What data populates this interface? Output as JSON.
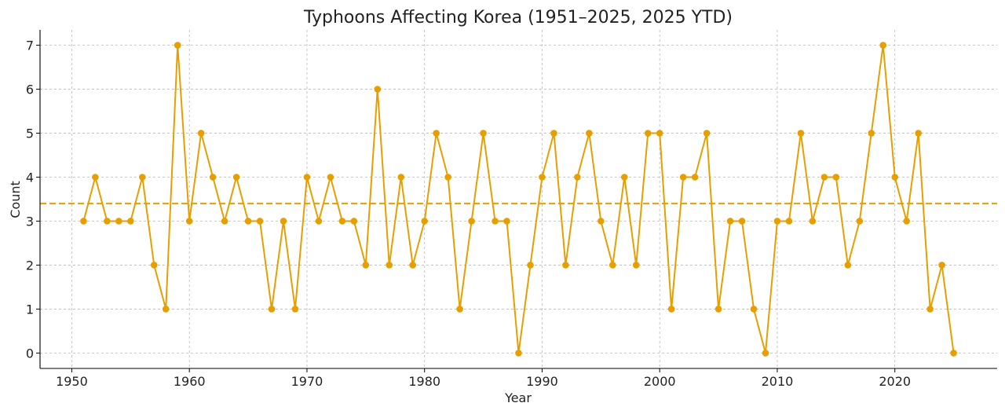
{
  "chart_data": {
    "type": "line",
    "title": "Typhoons Affecting Korea (1951–2025, 2025 YTD)",
    "xlabel": "Year",
    "ylabel": "Count",
    "xlim": [
      1947.3,
      2028.7
    ],
    "ylim": [
      -0.35,
      7.35
    ],
    "x_ticks": [
      1950,
      1960,
      1970,
      1980,
      1990,
      2000,
      2010,
      2020
    ],
    "y_ticks": [
      0,
      1,
      2,
      3,
      4,
      5,
      6,
      7
    ],
    "grid": true,
    "color": "#E69F00",
    "mean": 3.4,
    "series": [
      {
        "x": [
          1951,
          1952,
          1953,
          1954,
          1955,
          1956,
          1957,
          1958,
          1959,
          1960,
          1961,
          1962,
          1963,
          1964,
          1965,
          1966,
          1967,
          1968,
          1969,
          1970,
          1971,
          1972,
          1973,
          1974,
          1975,
          1976,
          1977,
          1978,
          1979,
          1980,
          1981,
          1982,
          1983,
          1984,
          1985,
          1986,
          1987,
          1988,
          1989,
          1990,
          1991,
          1992,
          1993,
          1994,
          1995,
          1996,
          1997,
          1998,
          1999,
          2000,
          2001,
          2002,
          2003,
          2004,
          2005,
          2006,
          2007,
          2008,
          2009,
          2010,
          2011,
          2012,
          2013,
          2014,
          2015,
          2016,
          2017,
          2018,
          2019,
          2020,
          2021,
          2022,
          2023,
          2024,
          2025
        ],
        "values": [
          3,
          4,
          3,
          3,
          3,
          4,
          2,
          1,
          7,
          3,
          5,
          4,
          3,
          4,
          3,
          3,
          1,
          3,
          1,
          4,
          3,
          4,
          3,
          3,
          2,
          6,
          2,
          4,
          2,
          3,
          5,
          4,
          1,
          3,
          5,
          3,
          3,
          0,
          2,
          4,
          5,
          2,
          4,
          5,
          3,
          2,
          4,
          2,
          5,
          5,
          1,
          4,
          4,
          5,
          1,
          3,
          3,
          1,
          0,
          3,
          3,
          5,
          3,
          4,
          4,
          2,
          3,
          5,
          7,
          4,
          3,
          5,
          1,
          2,
          0
        ]
      }
    ]
  }
}
